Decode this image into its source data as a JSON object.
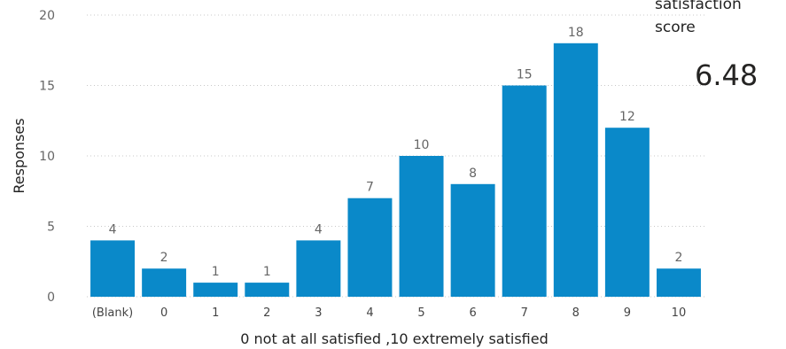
{
  "card": {
    "label": "satisfaction\nscore",
    "value": "6.48"
  },
  "chart_data": {
    "type": "bar",
    "title": "",
    "xlabel": "0 not at all satisfied ,10 extremely satisfied",
    "ylabel": "Responses",
    "ylim": [
      0,
      20
    ],
    "yticks": [
      0,
      5,
      10,
      15,
      20
    ],
    "grid": true,
    "bar_color": "#0a89c9",
    "categories": [
      "(Blank)",
      "0",
      "1",
      "2",
      "3",
      "4",
      "5",
      "6",
      "7",
      "8",
      "9",
      "10"
    ],
    "values": [
      4,
      2,
      1,
      1,
      4,
      7,
      10,
      8,
      15,
      18,
      12,
      2
    ]
  }
}
